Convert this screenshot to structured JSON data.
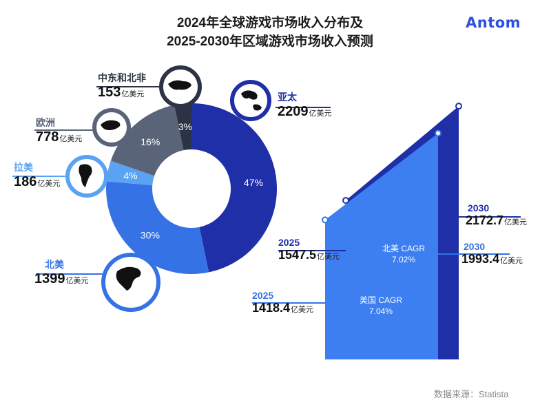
{
  "title_line1": "2024年全球游戏市场收入分布及",
  "title_line2": "2025-2030年区域游戏市场收入预测",
  "logo": "Antom",
  "source": "数据来源：Statista",
  "colors": {
    "apac": "#1f2fa8",
    "north_america": "#3572e6",
    "latin_america": "#5aa3f2",
    "europe": "#5a6478",
    "mena": "#2b3345",
    "us_area": "#3d7ef0"
  },
  "unit": "亿美元",
  "regions": [
    {
      "name": "亚太",
      "value": "2209",
      "icon": "asia-oceania-map-icon"
    },
    {
      "name": "北美",
      "value": "1399",
      "icon": "north-america-map-icon"
    },
    {
      "name": "拉美",
      "value": "186",
      "icon": "south-america-map-icon"
    },
    {
      "name": "欧洲",
      "value": "778",
      "icon": "europe-map-icon"
    },
    {
      "name": "中东和北非",
      "value": "153",
      "icon": "middle-east-north-africa-map-icon"
    }
  ],
  "chart_data": [
    {
      "type": "pie",
      "subtype": "donut",
      "title": "2024年全球游戏市场收入分布",
      "categories": [
        "亚太",
        "北美",
        "拉美",
        "欧洲",
        "中东和北非"
      ],
      "values": [
        2209,
        1399,
        186,
        778,
        153
      ],
      "percent_labels": [
        "47%",
        "30%",
        "4%",
        "16%",
        "3%"
      ]
    },
    {
      "type": "area",
      "title": "2025-2030年区域游戏市场收入预测",
      "x": [
        "2025",
        "2030"
      ],
      "series": [
        {
          "name": "北美",
          "values": [
            1547.5,
            2172.7
          ],
          "cagr": "北美 CAGR",
          "cagr_value": "7.02%",
          "labels": [
            "1547.5",
            "2172.7"
          ]
        },
        {
          "name": "美国",
          "values": [
            1418.4,
            1993.4
          ],
          "cagr": "美国 CAGR",
          "cagr_value": "7.04%",
          "labels": [
            "1418.4",
            "1993.4"
          ]
        }
      ]
    }
  ]
}
